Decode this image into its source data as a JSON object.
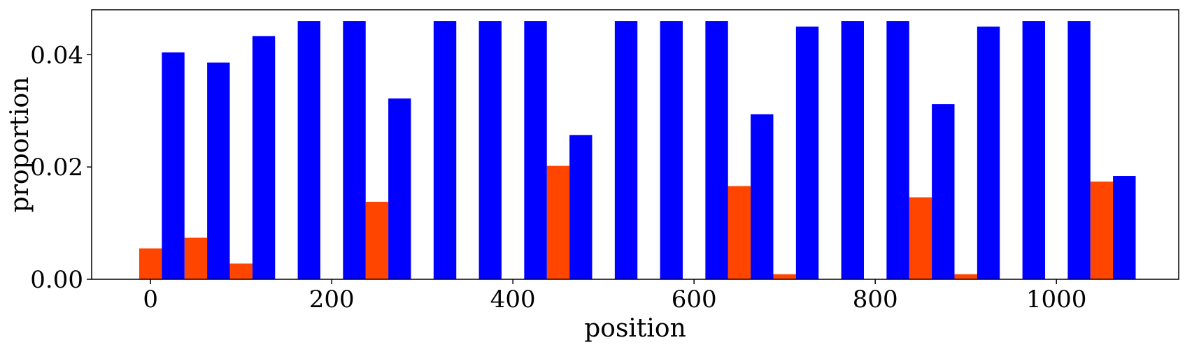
{
  "chart_data": {
    "type": "bar",
    "xlabel": "position",
    "ylabel": "proportion",
    "xlim": [
      -65,
      1135
    ],
    "ylim": [
      0,
      0.048
    ],
    "xticks": [
      0,
      200,
      400,
      600,
      800,
      1000
    ],
    "xtick_labels": [
      "0",
      "200",
      "400",
      "600",
      "800",
      "1000"
    ],
    "yticks": [
      0,
      0.02,
      0.04
    ],
    "ytick_labels": [
      "0.00",
      "0.02",
      "0.04"
    ],
    "grid": false,
    "bar_width": 25,
    "series": [
      {
        "color": "#ff4500",
        "x": [
          0,
          50,
          100,
          150,
          200,
          250,
          300,
          350,
          400,
          450,
          500,
          550,
          600,
          650,
          700,
          750,
          800,
          850,
          900,
          950,
          1000,
          1050
        ],
        "values": [
          0.0055,
          0.0074,
          0.0028,
          0,
          0,
          0.0138,
          0,
          0,
          0,
          0.0202,
          0,
          0,
          0,
          0.0166,
          0.0009,
          0,
          0,
          0.0146,
          0.0009,
          0,
          0,
          0.0174
        ]
      },
      {
        "color": "#0000ff",
        "x": [
          25,
          75,
          125,
          175,
          225,
          275,
          325,
          375,
          425,
          475,
          525,
          575,
          625,
          675,
          725,
          775,
          825,
          875,
          925,
          975,
          1025,
          1075
        ],
        "values": [
          0.0404,
          0.0386,
          0.0433,
          0.046,
          0.046,
          0.0322,
          0.046,
          0.046,
          0.046,
          0.0257,
          0.046,
          0.046,
          0.046,
          0.0294,
          0.045,
          0.046,
          0.046,
          0.0312,
          0.045,
          0.046,
          0.046,
          0.0184
        ]
      }
    ]
  }
}
